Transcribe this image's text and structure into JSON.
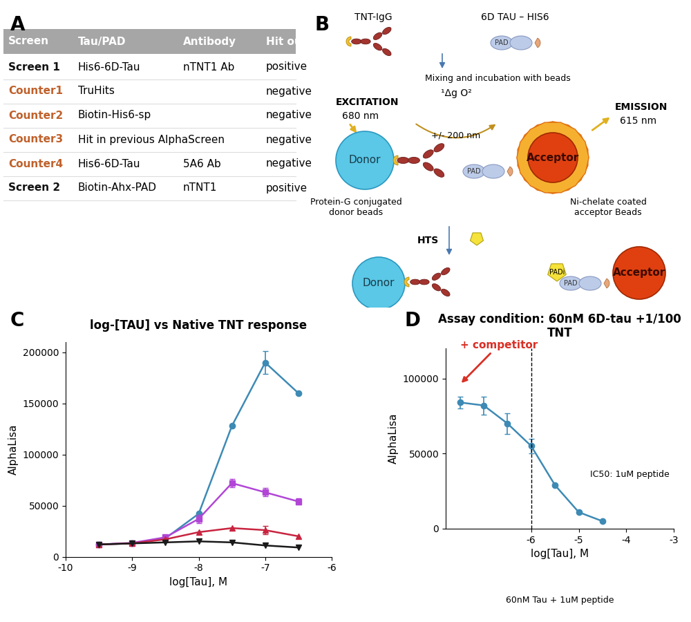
{
  "panel_labels": [
    "A",
    "B",
    "C",
    "D"
  ],
  "table": {
    "header": [
      "Screen",
      "Tau/PAD",
      "Antibody",
      "Hit output"
    ],
    "rows": [
      {
        "cells": [
          "Screen 1",
          "His6-6D-Tau",
          "nTNT1 Ab",
          "positive"
        ],
        "color": "#111111"
      },
      {
        "cells": [
          "Counter1",
          "TruHits",
          null,
          "negative"
        ],
        "color": "#c0602a"
      },
      {
        "cells": [
          "Counter2",
          "Biotin-His6-sp",
          null,
          "negative"
        ],
        "color": "#c0602a"
      },
      {
        "cells": [
          "Counter3",
          "Hit in previous AlphaScreen",
          null,
          "negative"
        ],
        "color": "#c0602a"
      },
      {
        "cells": [
          "Counter4",
          "His6-6D-Tau",
          "5A6 Ab",
          "negative"
        ],
        "color": "#c0602a"
      },
      {
        "cells": [
          "Screen 2",
          "Biotin-Ahx-PAD",
          "nTNT1",
          "positive"
        ],
        "color": "#111111"
      }
    ]
  },
  "diagram": {
    "antibody": "TNT-IgG",
    "tau": "6D TAU – HIS6",
    "step1": "Mixing and incubation with beads",
    "excitation": "EXCITATION",
    "excitation_wavelength": "680 nm",
    "emission": "EMISSION",
    "emission_wavelength": "615 nm",
    "singlet_oxygen": "¹Δg O²",
    "distance": "+/- 200 nm",
    "donor": "Donor",
    "acceptor": "Acceptor",
    "protein": "PAD",
    "donor_beads": "Protein-G conjugated\ndonor beads",
    "acceptor_beads": "Ni-chelate coated\nacceptor Beads",
    "step2": "HTS",
    "inhibitor": "PADi"
  },
  "chart_data": [
    {
      "type": "line",
      "title": "log-[TAU] vs Native TNT response",
      "x_label": "log[Tau], M",
      "y_label": "AlphaLisa",
      "x": [
        -9.5,
        -9,
        -8.5,
        -8,
        -7.5,
        -7,
        -6.5
      ],
      "series": [
        {
          "color": "#3d8ab5",
          "marker": "circle",
          "line_style": "solid",
          "values": [
            12000,
            13000,
            18000,
            42000,
            128000,
            190000,
            160000
          ],
          "errors": [
            null,
            null,
            null,
            null,
            null,
            11000,
            null
          ]
        },
        {
          "color": "#b146d6",
          "marker": "square",
          "line_style": "solid",
          "values": [
            12000,
            13500,
            19000,
            37000,
            72000,
            63000,
            54000
          ],
          "errors": [
            null,
            null,
            null,
            4000,
            4000,
            4000,
            3000
          ]
        },
        {
          "color": "#c8243f",
          "marker": "triangle_up",
          "line_style": "solid",
          "values": [
            12000,
            13000,
            17000,
            24000,
            28000,
            26000,
            20000
          ],
          "errors": [
            null,
            null,
            null,
            null,
            null,
            4000,
            null
          ]
        },
        {
          "color": "#1a1a1a",
          "marker": "triangle_down",
          "line_style": "solid",
          "values": [
            12000,
            13000,
            14000,
            15000,
            14000,
            11000,
            9000
          ],
          "errors": [
            null,
            null,
            null,
            null,
            null,
            null,
            null
          ]
        }
      ],
      "xlim": [
        -10,
        -6
      ],
      "xticks": [
        -10,
        -9,
        -8,
        -7,
        -6
      ],
      "ylim": [
        0,
        210000
      ],
      "yticks": [
        0,
        50000,
        100000,
        150000,
        200000
      ],
      "grid": false
    },
    {
      "type": "line",
      "title": "Assay condition: 60nM 6D-tau +1/100 TNT",
      "x_label": "log[Tau], M",
      "y_label": "AlphaLisa",
      "x": [
        -7.5,
        -7,
        -6.5,
        -6,
        -5.5,
        -5,
        -4.5
      ],
      "series": [
        {
          "color": "#3d8ab5",
          "marker": "circle",
          "line_style": "solid",
          "values": [
            84000,
            82000,
            70000,
            55000,
            29000,
            11000,
            5000
          ],
          "errors": [
            4000,
            6000,
            7000,
            5000,
            null,
            null,
            null
          ]
        }
      ],
      "xlim": [
        -7.8,
        -3
      ],
      "xticks": [
        -6,
        -5,
        -4,
        -3
      ],
      "ylim": [
        0,
        120000
      ],
      "yticks": [
        0,
        50000,
        100000
      ],
      "grid": false,
      "reference_line_x": -6,
      "arrow_annotation": {
        "text": "+ competitor",
        "x": -7.5,
        "color": "#d93025"
      },
      "note": "IC50: 1uM peptide",
      "footnote": "60nM Tau + 1uM peptide"
    }
  ]
}
